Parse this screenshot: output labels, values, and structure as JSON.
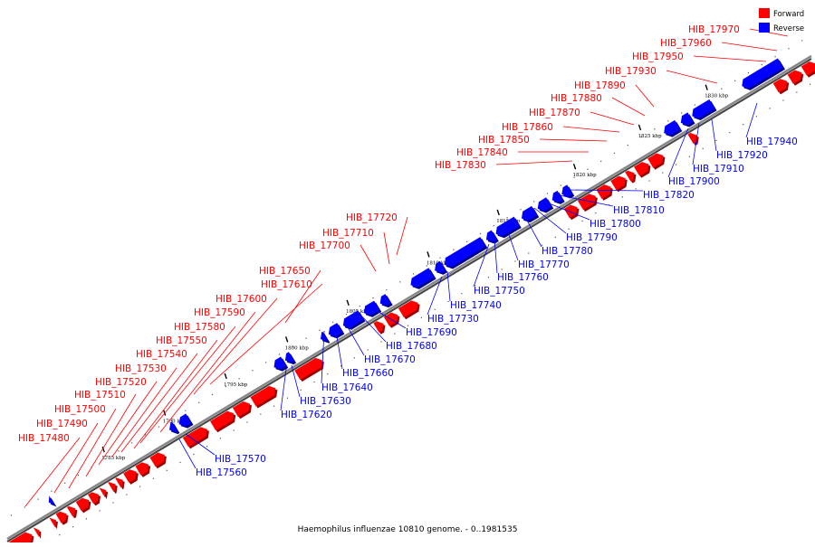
{
  "caption": "Haemophilus influenzae 10810 genome. - 0..1981535",
  "legend": [
    {
      "label": "Forward",
      "color": "#ff0000"
    },
    {
      "label": "Reverse",
      "color": "#0000ff"
    }
  ],
  "colors": {
    "forward": "#ff0000",
    "reverse": "#0000ff",
    "axis": "#888888"
  },
  "axis_ticks": [
    {
      "kbp": 1785,
      "label": "1785 kbp"
    },
    {
      "kbp": 1790,
      "label": "1790 kbp"
    },
    {
      "kbp": 1795,
      "label": "1795 kbp"
    },
    {
      "kbp": 1800,
      "label": "1800 kbp"
    },
    {
      "kbp": 1805,
      "label": "1805 kbp"
    },
    {
      "kbp": 1810,
      "label": "1810 kbp"
    },
    {
      "kbp": 1815,
      "label": "1815 kbp"
    },
    {
      "kbp": 1820,
      "label": "1820 kbp"
    },
    {
      "kbp": 1825,
      "label": "1825 kbp"
    },
    {
      "kbp": 1830,
      "label": "1830 kbp"
    }
  ],
  "forward_genes": [
    "HIB_17480",
    "HIB_17490",
    "HIB_17500",
    "HIB_17510",
    "HIB_17520",
    "HIB_17530",
    "HIB_17540",
    "HIB_17550",
    "HIB_17580",
    "HIB_17590",
    "HIB_17600",
    "HIB_17610",
    "HIB_17650",
    "HIB_17700",
    "HIB_17710",
    "HIB_17720",
    "HIB_17830",
    "HIB_17840",
    "HIB_17850",
    "HIB_17860",
    "HIB_17870",
    "HIB_17880",
    "HIB_17890",
    "HIB_17930",
    "HIB_17950",
    "HIB_17960",
    "HIB_17970"
  ],
  "reverse_genes": [
    "HIB_17560",
    "HIB_17570",
    "HIB_17620",
    "HIB_17630",
    "HIB_17640",
    "HIB_17660",
    "HIB_17670",
    "HIB_17680",
    "HIB_17690",
    "HIB_17730",
    "HIB_17740",
    "HIB_17750",
    "HIB_17760",
    "HIB_17770",
    "HIB_17780",
    "HIB_17790",
    "HIB_17800",
    "HIB_17810",
    "HIB_17820",
    "HIB_17900",
    "HIB_17910",
    "HIB_17920",
    "HIB_17940"
  ]
}
